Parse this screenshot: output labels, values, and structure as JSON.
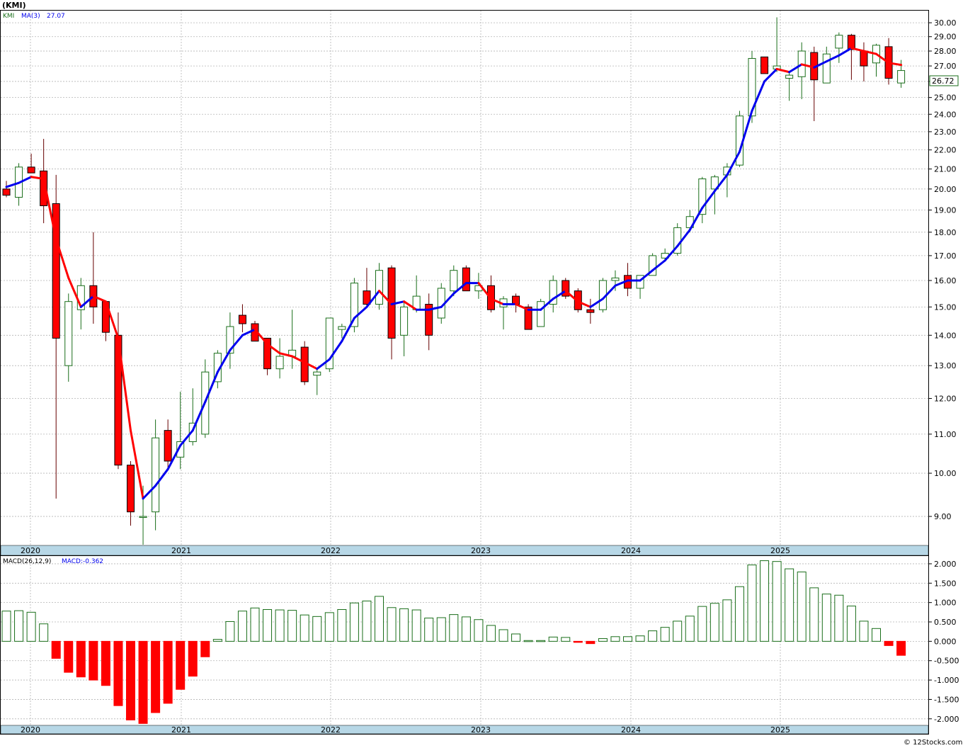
{
  "header": {
    "symbol_title": "(KMI)",
    "footer_credit": "© 12Stocks.com"
  },
  "colors": {
    "up": "#1a6e1a",
    "down": "#ff0000",
    "ma_up": "#0000ee",
    "ma_down": "#ff0000",
    "grid": "#b4b4b4",
    "axis_strip": "#b7d7e6",
    "macd_pos": "#1a6e1a",
    "macd_neg": "#ff0000"
  },
  "chart_data": [
    {
      "type": "candlestick",
      "title": "KMI",
      "legend": {
        "symbol": "KMI",
        "ma_label": "MA(3)",
        "ma_value": "27.07"
      },
      "last_price_label": "26.72",
      "y_scale": "log",
      "ylim": [
        8.4,
        30.9
      ],
      "y_ticks": [
        "9.00",
        "10.00",
        "11.00",
        "12.00",
        "13.00",
        "14.00",
        "15.00",
        "16.00",
        "17.00",
        "18.00",
        "19.00",
        "20.00",
        "21.00",
        "22.00",
        "23.00",
        "24.00",
        "25.00",
        "26.00",
        "27.00",
        "28.00",
        "29.00",
        "30.00"
      ],
      "x_ticks": [
        "2020",
        "2021",
        "2022",
        "2023",
        "2024",
        "2025"
      ],
      "grid": true,
      "candles": [
        {
          "o": 20.0,
          "h": 20.4,
          "l": 19.6,
          "c": 19.7
        },
        {
          "o": 19.6,
          "h": 21.3,
          "l": 19.2,
          "c": 21.1
        },
        {
          "o": 21.1,
          "h": 21.8,
          "l": 20.8,
          "c": 20.8
        },
        {
          "o": 20.9,
          "h": 22.6,
          "l": 18.4,
          "c": 19.2
        },
        {
          "o": 19.3,
          "h": 20.7,
          "l": 9.4,
          "c": 13.9
        },
        {
          "o": 13.0,
          "h": 15.5,
          "l": 12.5,
          "c": 15.2
        },
        {
          "o": 14.9,
          "h": 16.1,
          "l": 14.2,
          "c": 15.8
        },
        {
          "o": 15.8,
          "h": 18.0,
          "l": 14.4,
          "c": 15.0
        },
        {
          "o": 15.2,
          "h": 15.2,
          "l": 13.8,
          "c": 14.1
        },
        {
          "o": 14.0,
          "h": 14.8,
          "l": 10.1,
          "c": 10.2
        },
        {
          "o": 10.2,
          "h": 10.3,
          "l": 8.8,
          "c": 9.1
        },
        {
          "o": 9.0,
          "h": 9.7,
          "l": 8.4,
          "c": 9.0
        },
        {
          "o": 9.1,
          "h": 11.4,
          "l": 8.7,
          "c": 10.9
        },
        {
          "o": 11.1,
          "h": 11.4,
          "l": 10.1,
          "c": 10.3
        },
        {
          "o": 10.4,
          "h": 12.2,
          "l": 10.1,
          "c": 10.8
        },
        {
          "o": 10.8,
          "h": 12.3,
          "l": 10.7,
          "c": 11.3
        },
        {
          "o": 11.0,
          "h": 13.2,
          "l": 10.9,
          "c": 12.8
        },
        {
          "o": 12.5,
          "h": 13.5,
          "l": 12.3,
          "c": 13.4
        },
        {
          "o": 13.4,
          "h": 14.8,
          "l": 12.9,
          "c": 14.3
        },
        {
          "o": 14.7,
          "h": 15.1,
          "l": 14.1,
          "c": 14.4
        },
        {
          "o": 14.4,
          "h": 14.5,
          "l": 13.8,
          "c": 13.8
        },
        {
          "o": 13.9,
          "h": 13.9,
          "l": 12.7,
          "c": 12.9
        },
        {
          "o": 12.9,
          "h": 13.9,
          "l": 12.6,
          "c": 13.3
        },
        {
          "o": 13.3,
          "h": 14.9,
          "l": 12.9,
          "c": 13.5
        },
        {
          "o": 13.6,
          "h": 13.8,
          "l": 12.4,
          "c": 12.5
        },
        {
          "o": 12.7,
          "h": 12.9,
          "l": 12.1,
          "c": 12.8
        },
        {
          "o": 12.9,
          "h": 14.6,
          "l": 12.8,
          "c": 14.6
        },
        {
          "o": 14.2,
          "h": 14.4,
          "l": 13.9,
          "c": 14.3
        },
        {
          "o": 14.3,
          "h": 16.1,
          "l": 14.1,
          "c": 15.9
        },
        {
          "o": 15.6,
          "h": 16.5,
          "l": 15.0,
          "c": 15.1
        },
        {
          "o": 15.1,
          "h": 16.7,
          "l": 14.9,
          "c": 16.4
        },
        {
          "o": 16.5,
          "h": 16.6,
          "l": 13.2,
          "c": 13.9
        },
        {
          "o": 14.0,
          "h": 15.2,
          "l": 13.3,
          "c": 15.0
        },
        {
          "o": 14.9,
          "h": 16.2,
          "l": 14.8,
          "c": 15.4
        },
        {
          "o": 15.1,
          "h": 15.5,
          "l": 13.5,
          "c": 14.0
        },
        {
          "o": 14.6,
          "h": 15.9,
          "l": 14.4,
          "c": 15.7
        },
        {
          "o": 15.6,
          "h": 16.6,
          "l": 15.4,
          "c": 16.4
        },
        {
          "o": 16.5,
          "h": 16.6,
          "l": 15.6,
          "c": 15.6
        },
        {
          "o": 15.6,
          "h": 16.3,
          "l": 15.3,
          "c": 15.8
        },
        {
          "o": 15.8,
          "h": 16.2,
          "l": 14.8,
          "c": 14.9
        },
        {
          "o": 15.0,
          "h": 15.4,
          "l": 14.2,
          "c": 15.3
        },
        {
          "o": 15.4,
          "h": 15.5,
          "l": 14.8,
          "c": 15.1
        },
        {
          "o": 15.0,
          "h": 15.1,
          "l": 14.2,
          "c": 14.2
        },
        {
          "o": 14.3,
          "h": 15.3,
          "l": 14.3,
          "c": 15.2
        },
        {
          "o": 15.1,
          "h": 16.2,
          "l": 14.8,
          "c": 16.0
        },
        {
          "o": 16.0,
          "h": 16.1,
          "l": 15.3,
          "c": 15.4
        },
        {
          "o": 15.6,
          "h": 15.7,
          "l": 14.8,
          "c": 14.9
        },
        {
          "o": 14.9,
          "h": 15.3,
          "l": 14.4,
          "c": 14.8
        },
        {
          "o": 14.9,
          "h": 16.1,
          "l": 14.8,
          "c": 16.0
        },
        {
          "o": 16.0,
          "h": 16.4,
          "l": 15.6,
          "c": 16.1
        },
        {
          "o": 16.2,
          "h": 16.7,
          "l": 15.4,
          "c": 15.7
        },
        {
          "o": 15.7,
          "h": 16.2,
          "l": 15.3,
          "c": 16.2
        },
        {
          "o": 16.2,
          "h": 17.1,
          "l": 16.2,
          "c": 17.0
        },
        {
          "o": 16.9,
          "h": 17.3,
          "l": 16.8,
          "c": 17.1
        },
        {
          "o": 17.1,
          "h": 18.4,
          "l": 17.0,
          "c": 18.2
        },
        {
          "o": 18.2,
          "h": 19.0,
          "l": 18.0,
          "c": 18.7
        },
        {
          "o": 18.8,
          "h": 20.6,
          "l": 18.4,
          "c": 20.5
        },
        {
          "o": 20.0,
          "h": 20.7,
          "l": 18.8,
          "c": 20.6
        },
        {
          "o": 20.7,
          "h": 21.3,
          "l": 19.6,
          "c": 21.1
        },
        {
          "o": 21.2,
          "h": 24.2,
          "l": 21.1,
          "c": 23.9
        },
        {
          "o": 23.9,
          "h": 28.0,
          "l": 23.5,
          "c": 27.5
        },
        {
          "o": 27.6,
          "h": 27.6,
          "l": 26.5,
          "c": 26.5
        },
        {
          "o": 26.8,
          "h": 30.4,
          "l": 26.6,
          "c": 27.0
        },
        {
          "o": 26.2,
          "h": 26.6,
          "l": 24.8,
          "c": 26.4
        },
        {
          "o": 26.3,
          "h": 28.6,
          "l": 24.9,
          "c": 28.0
        },
        {
          "o": 27.9,
          "h": 28.3,
          "l": 23.6,
          "c": 26.1
        },
        {
          "o": 25.9,
          "h": 28.3,
          "l": 25.9,
          "c": 27.8
        },
        {
          "o": 28.2,
          "h": 29.3,
          "l": 27.2,
          "c": 29.1
        },
        {
          "o": 29.1,
          "h": 29.2,
          "l": 26.1,
          "c": 28.1
        },
        {
          "o": 28.0,
          "h": 28.6,
          "l": 26.0,
          "c": 27.0
        },
        {
          "o": 27.2,
          "h": 28.5,
          "l": 26.3,
          "c": 28.4
        },
        {
          "o": 28.3,
          "h": 28.9,
          "l": 25.8,
          "c": 26.2
        },
        {
          "o": 25.9,
          "h": 27.4,
          "l": 25.6,
          "c": 26.7
        }
      ],
      "ma3": [
        20.1,
        20.3,
        20.6,
        20.5,
        17.7,
        16.1,
        15.0,
        15.4,
        15.2,
        13.9,
        11.1,
        9.4,
        9.7,
        10.1,
        10.7,
        11.1,
        11.9,
        12.8,
        13.5,
        14.0,
        14.2,
        13.7,
        13.4,
        13.3,
        13.1,
        12.9,
        13.2,
        13.8,
        14.6,
        15.0,
        15.6,
        15.1,
        15.2,
        14.9,
        14.9,
        15.0,
        15.5,
        15.9,
        15.9,
        15.3,
        15.1,
        15.1,
        14.9,
        14.9,
        15.3,
        15.6,
        15.2,
        15.0,
        15.3,
        15.8,
        16.0,
        16.0,
        16.4,
        16.8,
        17.4,
        18.1,
        19.1,
        19.9,
        20.7,
        21.9,
        24.2,
        26.0,
        26.8,
        26.6,
        27.1,
        26.9,
        27.3,
        27.7,
        28.2,
        28.0,
        27.8,
        27.2,
        27.07
      ]
    },
    {
      "type": "bar",
      "title": "MACD",
      "legend": {
        "label": "MACD(26,12,9)",
        "value_label": "MACD:-0.362"
      },
      "ylim": [
        -2.15,
        2.2
      ],
      "y_ticks": [
        "-2.000",
        "-1.500",
        "-1.000",
        "-0.500",
        "0.000",
        "0.500",
        "1.000",
        "1.500",
        "2.000"
      ],
      "x_ticks": [
        "2020",
        "2021",
        "2022",
        "2023",
        "2024",
        "2025"
      ],
      "grid": true,
      "values": [
        0.78,
        0.79,
        0.75,
        0.45,
        -0.44,
        -0.8,
        -0.92,
        -1.0,
        -1.14,
        -1.66,
        -2.03,
        -2.12,
        -1.84,
        -1.6,
        -1.24,
        -0.9,
        -0.4,
        0.05,
        0.51,
        0.78,
        0.86,
        0.82,
        0.81,
        0.8,
        0.68,
        0.64,
        0.74,
        0.82,
        0.99,
        1.04,
        1.16,
        0.87,
        0.84,
        0.81,
        0.6,
        0.61,
        0.69,
        0.63,
        0.56,
        0.41,
        0.3,
        0.19,
        0.02,
        0.02,
        0.11,
        0.1,
        -0.02,
        -0.06,
        0.07,
        0.12,
        0.12,
        0.14,
        0.27,
        0.36,
        0.52,
        0.65,
        0.9,
        0.98,
        1.07,
        1.41,
        1.97,
        2.08,
        2.06,
        1.87,
        1.79,
        1.38,
        1.22,
        1.19,
        0.91,
        0.52,
        0.33,
        -0.11,
        -0.362
      ]
    }
  ]
}
